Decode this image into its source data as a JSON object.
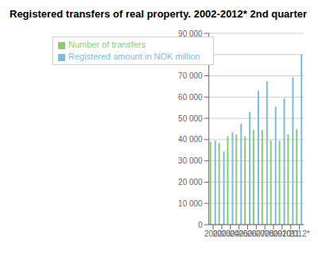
{
  "chart_data": {
    "type": "bar",
    "title": "Registered transfers of real property. 2002-2012* 2nd quarter",
    "categories": [
      "2002",
      "2003",
      "2004",
      "2005",
      "2006",
      "2007",
      "2008",
      "2009",
      "2010",
      "2011",
      "2012*"
    ],
    "series": [
      {
        "name": "Number of transfers",
        "color": "#8dc87a",
        "values": [
          39000,
          38500,
          41500,
          42500,
          41500,
          44500,
          44500,
          39500,
          39500,
          42500,
          45000
        ]
      },
      {
        "name": "Registered amount in NOK million",
        "color": "#7bbcde",
        "values": [
          39500,
          34500,
          43500,
          47500,
          53000,
          63000,
          67500,
          55500,
          59500,
          69500,
          80000
        ]
      }
    ],
    "ylim": [
      0,
      90000
    ],
    "yticks": [
      0,
      {
        "value": 10000,
        "label": "10 000"
      },
      {
        "value": 20000,
        "label": "20 000"
      },
      {
        "value": 30000,
        "label": "30 000"
      },
      {
        "value": 40000,
        "label": "40 000"
      },
      {
        "value": 50000,
        "label": "50 000"
      },
      {
        "value": 60000,
        "label": "60 000"
      },
      {
        "value": 70000,
        "label": "70 000"
      },
      {
        "value": 80000,
        "label": "80 000"
      },
      {
        "value": 90000,
        "label": "90 000"
      }
    ],
    "grid": true,
    "legend": "upper left"
  }
}
